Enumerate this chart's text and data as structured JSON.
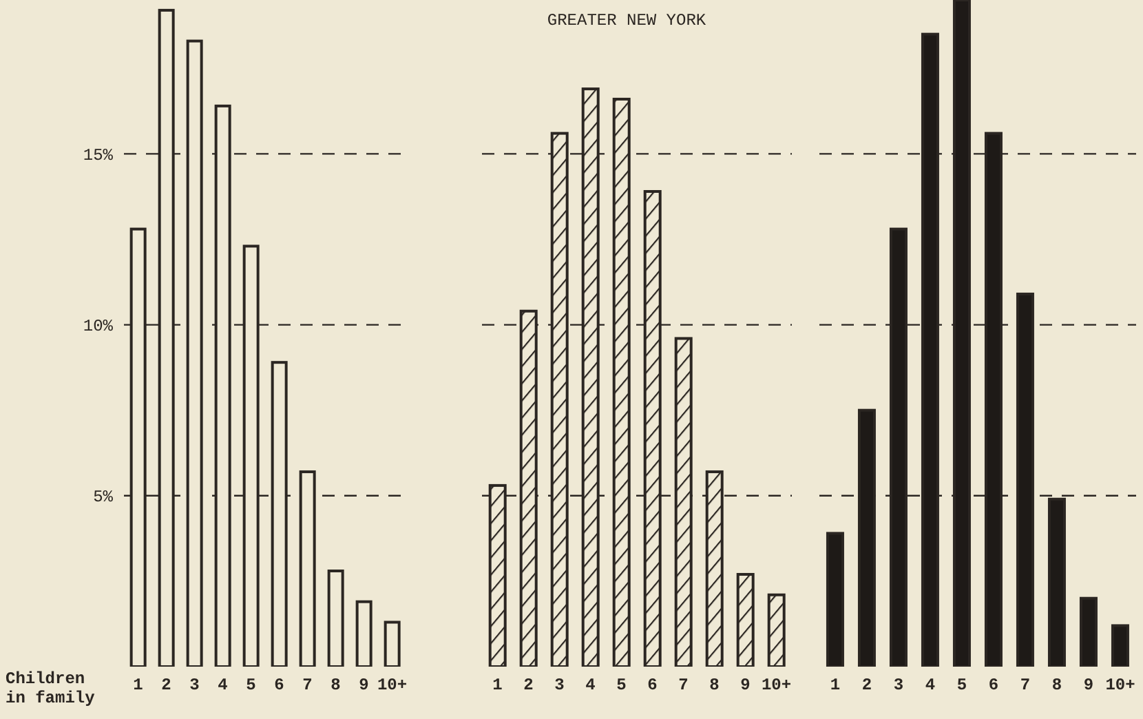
{
  "chart_data": [
    {
      "type": "bar",
      "xlabel": "Children in family",
      "categories": [
        "1",
        "2",
        "3",
        "4",
        "5",
        "6",
        "7",
        "8",
        "9",
        "10+"
      ],
      "series": [
        {
          "color": "#efe9d5",
          "values": [
            12.8,
            19.2,
            18.3,
            16.4,
            12.3,
            8.9,
            5.7,
            2.8,
            1.9,
            1.3
          ]
        }
      ],
      "ylim": [
        0,
        19.5
      ],
      "yticks": [
        {
          "value": 5,
          "label": "5%"
        },
        {
          "value": 10,
          "label": "10%"
        },
        {
          "value": 15,
          "label": "15%"
        }
      ],
      "grid": "y",
      "line_style": "dashed"
    },
    {
      "type": "bar",
      "title": "GREATER NEW YORK",
      "categories": [
        "1",
        "2",
        "3",
        "4",
        "5",
        "6",
        "7",
        "8",
        "9",
        "10+"
      ],
      "series": [
        {
          "color": "#2b2622",
          "values": [
            5.3,
            10.4,
            15.6,
            16.9,
            16.6,
            13.9,
            9.6,
            5.7,
            2.7,
            2.1
          ]
        }
      ],
      "ylim": [
        0,
        19.5
      ],
      "yticks": [
        5,
        10,
        15
      ],
      "grid": "y",
      "line_style": "dashed",
      "tick_labels": "x"
    },
    {
      "type": "bar",
      "categories": [
        "1",
        "2",
        "3",
        "4",
        "5",
        "6",
        "7",
        "8",
        "9",
        "10+"
      ],
      "series": [
        {
          "color": "#1e1a17",
          "values": [
            3.9,
            7.5,
            12.8,
            18.5,
            19.5,
            15.6,
            10.9,
            4.9,
            2.0,
            1.2
          ]
        }
      ],
      "ylim": [
        0,
        19.5
      ],
      "yticks": [
        5,
        10,
        15
      ],
      "grid": "y",
      "line_style": "dashed",
      "tick_labels": "x"
    }
  ]
}
